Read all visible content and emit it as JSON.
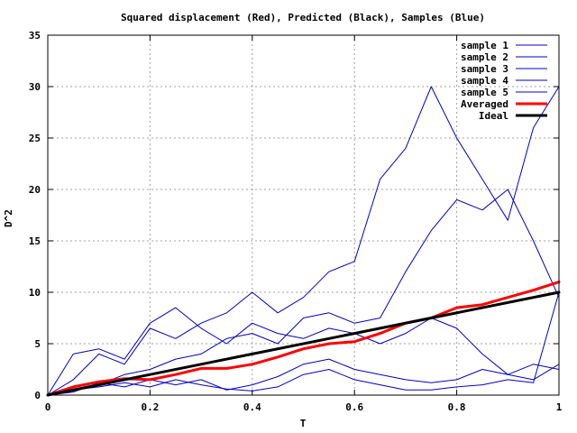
{
  "chart_data": {
    "type": "line",
    "title": "Squared displacement (Red), Predicted (Black), Samples (Blue)",
    "xlabel": "T",
    "ylabel": "D^2",
    "xlim": [
      0,
      1
    ],
    "ylim": [
      0,
      35
    ],
    "xticks": [
      0,
      0.2,
      0.4,
      0.6,
      0.8,
      1
    ],
    "xtick_labels": [
      "0",
      "0.2",
      "0.4",
      "0.6",
      "0.8",
      "1"
    ],
    "yticks": [
      0,
      5,
      10,
      15,
      20,
      25,
      30,
      35
    ],
    "ytick_labels": [
      "0",
      "5",
      "10",
      "15",
      "20",
      "25",
      "30",
      "35"
    ],
    "grid": true,
    "legend_position": "top-right",
    "series": [
      {
        "name": "sample 1",
        "color": "#0000cc",
        "width": 1,
        "x": [
          0,
          0.05,
          0.1,
          0.15,
          0.2,
          0.25,
          0.3,
          0.35,
          0.4,
          0.45,
          0.5,
          0.55,
          0.6,
          0.65,
          0.7,
          0.75,
          0.8,
          0.85,
          0.9,
          0.95,
          1
        ],
        "y": [
          0,
          1.5,
          4,
          3,
          6.5,
          5.5,
          7,
          8,
          10,
          8,
          9.5,
          12,
          13,
          21,
          24,
          30,
          25,
          21,
          17,
          26,
          30
        ]
      },
      {
        "name": "sample 2",
        "color": "#0000cc",
        "width": 1,
        "x": [
          0,
          0.05,
          0.1,
          0.15,
          0.2,
          0.25,
          0.3,
          0.35,
          0.4,
          0.45,
          0.5,
          0.55,
          0.6,
          0.65,
          0.7,
          0.75,
          0.8,
          0.85,
          0.9,
          0.95,
          1
        ],
        "y": [
          0,
          0.5,
          1,
          2,
          2.5,
          3.5,
          4,
          5.5,
          6,
          5,
          7.5,
          8,
          7,
          7.5,
          12,
          16,
          19,
          18,
          20,
          15,
          9.5
        ]
      },
      {
        "name": "sample 3",
        "color": "#0000cc",
        "width": 1,
        "x": [
          0,
          0.05,
          0.1,
          0.15,
          0.2,
          0.25,
          0.3,
          0.35,
          0.4,
          0.45,
          0.5,
          0.55,
          0.6,
          0.65,
          0.7,
          0.75,
          0.8,
          0.85,
          0.9,
          0.95,
          1
        ],
        "y": [
          0,
          4,
          4.5,
          3.5,
          7,
          8.5,
          6.5,
          5,
          7,
          6,
          5.5,
          6.5,
          6,
          5,
          6,
          7.5,
          6.5,
          4,
          2,
          1.5,
          3
        ]
      },
      {
        "name": "sample 4",
        "color": "#0000cc",
        "width": 1,
        "x": [
          0,
          0.05,
          0.1,
          0.15,
          0.2,
          0.25,
          0.3,
          0.35,
          0.4,
          0.45,
          0.5,
          0.55,
          0.6,
          0.65,
          0.7,
          0.75,
          0.8,
          0.85,
          0.9,
          0.95,
          1
        ],
        "y": [
          0,
          0.3,
          1.2,
          0.8,
          1.5,
          1,
          1.5,
          0.5,
          1,
          1.8,
          3,
          3.5,
          2.5,
          2,
          1.5,
          1.2,
          1.5,
          2.5,
          2,
          3,
          2.5
        ]
      },
      {
        "name": "sample 5",
        "color": "#0000cc",
        "width": 1,
        "x": [
          0,
          0.05,
          0.1,
          0.15,
          0.2,
          0.25,
          0.3,
          0.35,
          0.4,
          0.45,
          0.5,
          0.55,
          0.6,
          0.65,
          0.7,
          0.75,
          0.8,
          0.85,
          0.9,
          0.95,
          1
        ],
        "y": [
          0,
          0.5,
          0.8,
          1.2,
          0.8,
          1.5,
          1,
          0.6,
          0.4,
          0.8,
          2,
          2.5,
          1.5,
          1,
          0.5,
          0.5,
          0.8,
          1,
          1.5,
          1.2,
          10
        ]
      },
      {
        "name": "Averaged",
        "color": "#ff0000",
        "width": 3,
        "x": [
          0,
          0.05,
          0.1,
          0.15,
          0.2,
          0.25,
          0.3,
          0.35,
          0.4,
          0.45,
          0.5,
          0.55,
          0.6,
          0.65,
          0.7,
          0.75,
          0.8,
          0.85,
          0.9,
          0.95,
          1
        ],
        "y": [
          0,
          0.8,
          1.3,
          1.6,
          1.5,
          2,
          2.6,
          2.6,
          3,
          3.7,
          4.5,
          5,
          5.2,
          6,
          7,
          7.5,
          8.5,
          8.8,
          9.5,
          10.2,
          11
        ]
      },
      {
        "name": "Ideal",
        "color": "#000000",
        "width": 3,
        "x": [
          0,
          1
        ],
        "y": [
          0,
          10
        ]
      }
    ]
  }
}
